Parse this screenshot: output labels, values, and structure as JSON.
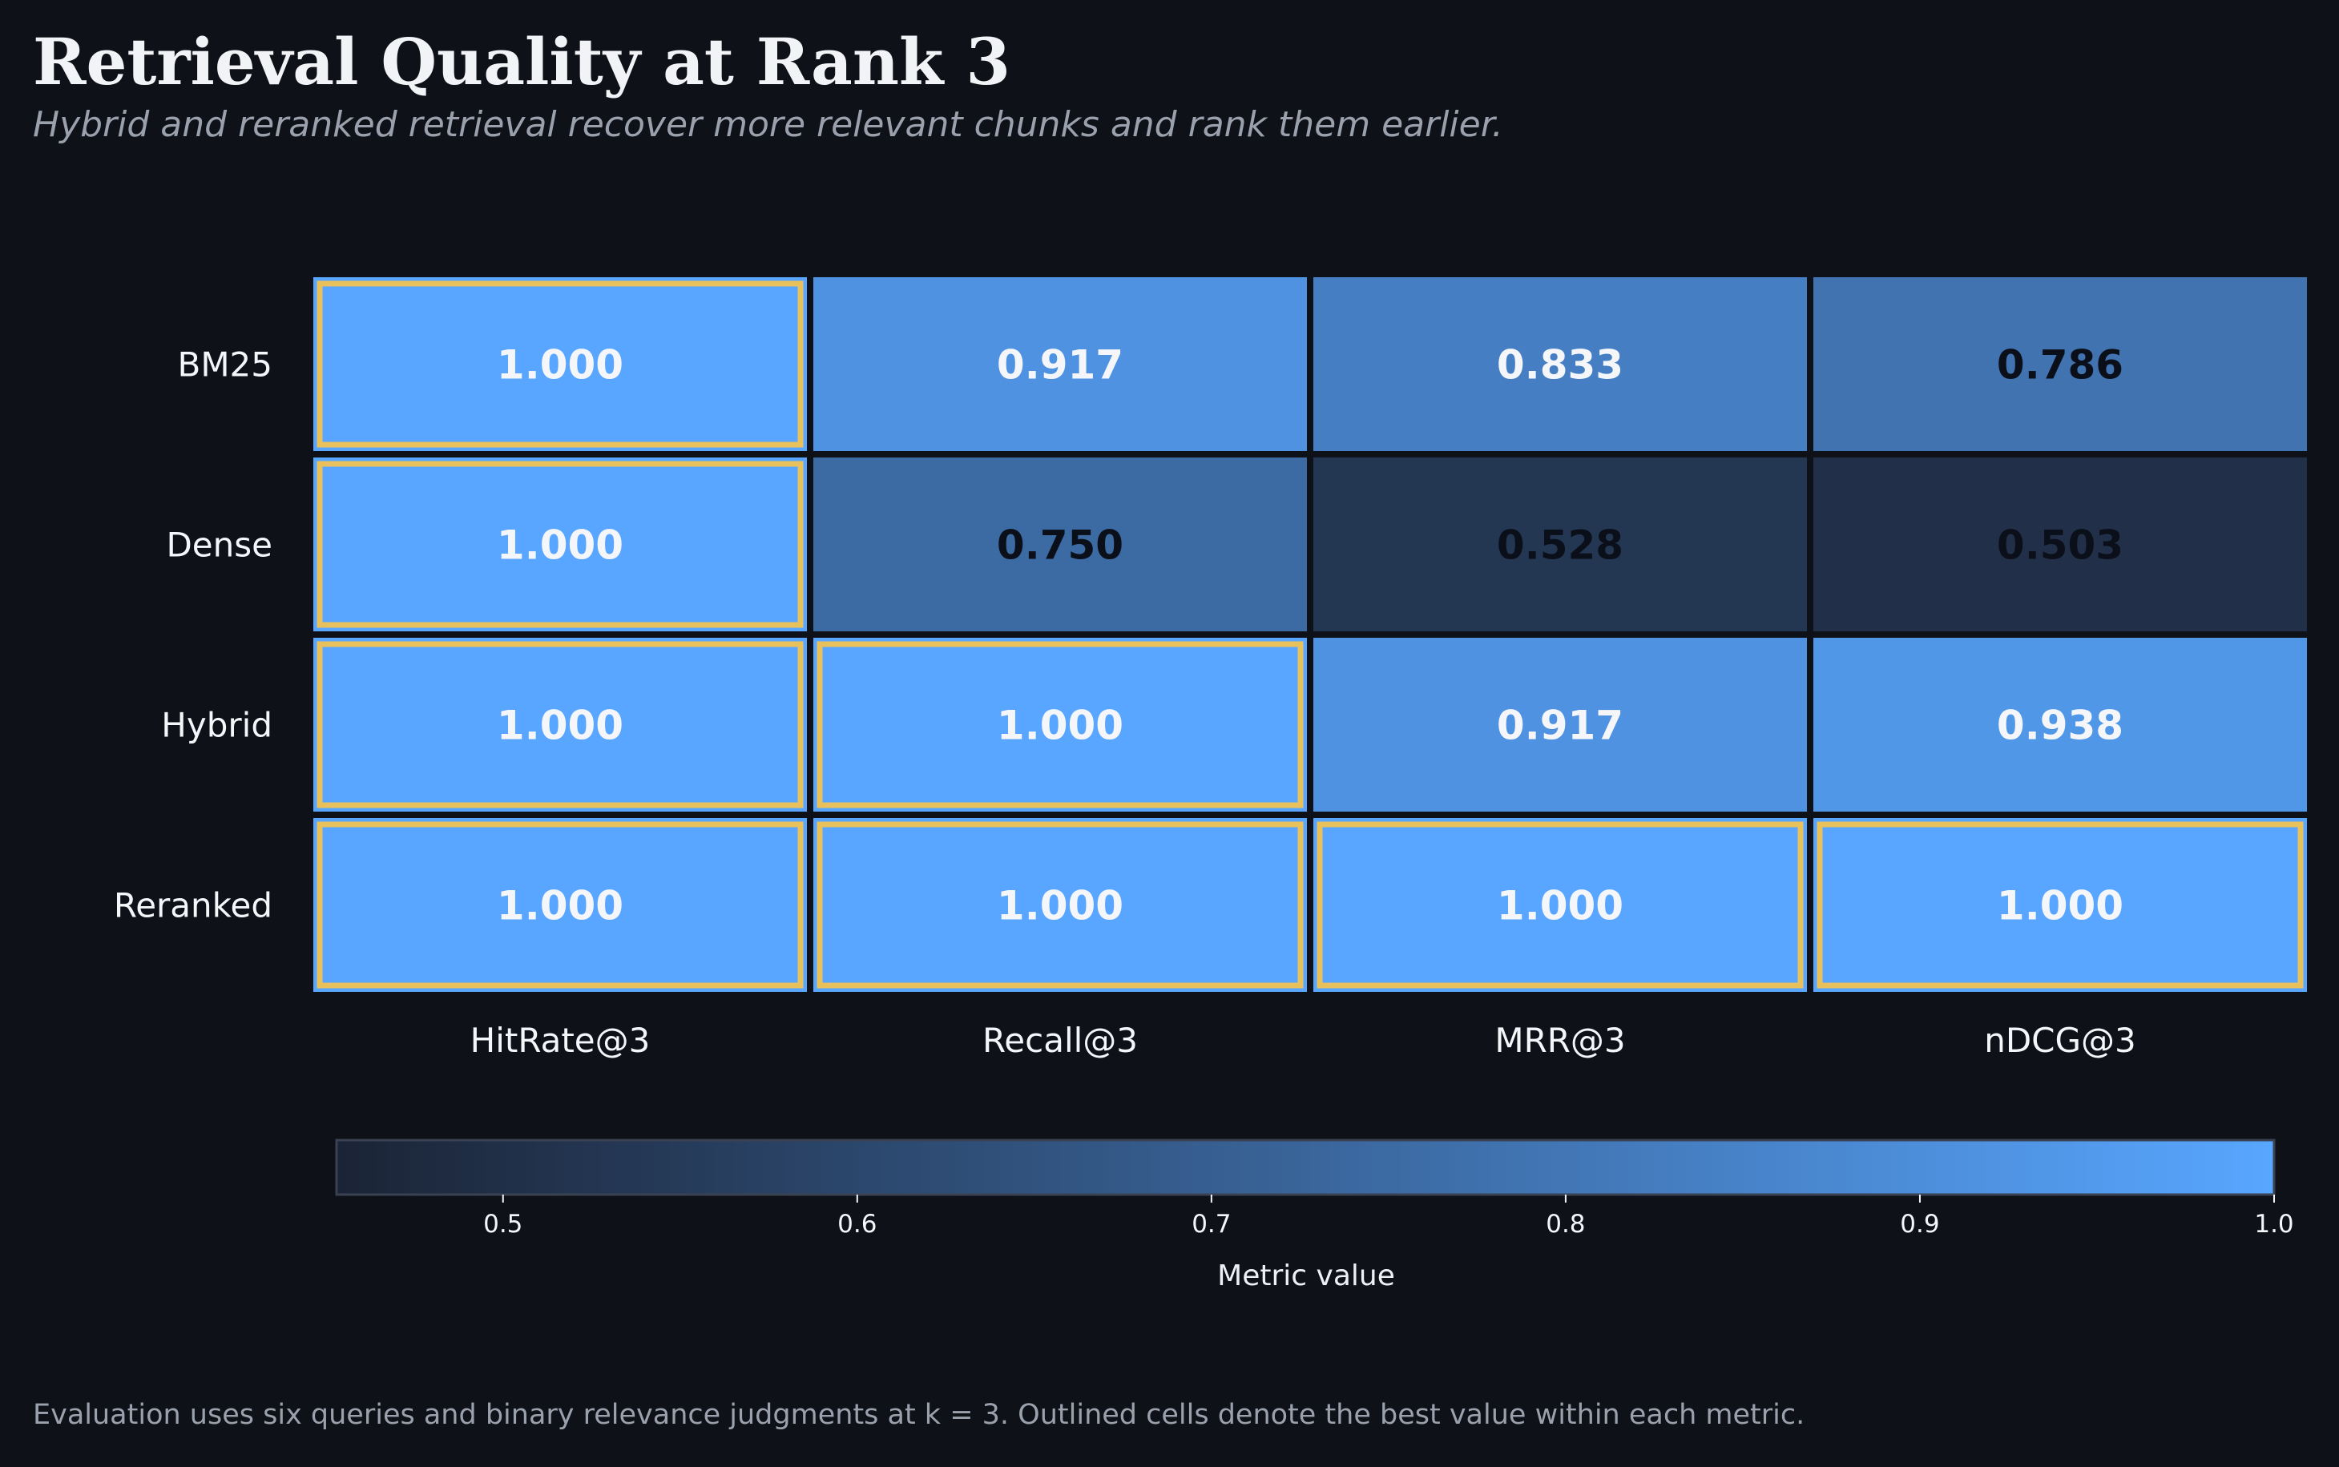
{
  "title": "Retrieval Quality at Rank 3",
  "subtitle": "Hybrid and reranked retrieval recover more relevant chunks and rank them earlier.",
  "footnote": "Evaluation uses six queries and binary relevance judgments at k = 3. Outlined cells denote the best value within each metric.",
  "chart_data": {
    "type": "heatmap",
    "rows": [
      "BM25",
      "Dense",
      "Hybrid",
      "Reranked"
    ],
    "columns": [
      "HitRate@3",
      "Recall@3",
      "MRR@3",
      "nDCG@3"
    ],
    "values": [
      [
        1.0,
        0.917,
        0.833,
        0.786
      ],
      [
        1.0,
        0.75,
        0.528,
        0.503
      ],
      [
        1.0,
        1.0,
        0.917,
        0.938
      ],
      [
        1.0,
        1.0,
        1.0,
        1.0
      ]
    ],
    "value_labels": [
      [
        "1.000",
        "0.917",
        "0.833",
        "0.786"
      ],
      [
        "1.000",
        "0.750",
        "0.528",
        "0.503"
      ],
      [
        "1.000",
        "1.000",
        "0.917",
        "0.938"
      ],
      [
        "1.000",
        "1.000",
        "1.000",
        "1.000"
      ]
    ],
    "best_outlined": [
      [
        true,
        false,
        false,
        false
      ],
      [
        true,
        false,
        false,
        false
      ],
      [
        true,
        true,
        false,
        false
      ],
      [
        true,
        true,
        true,
        true
      ]
    ],
    "colorbar": {
      "label": "Metric value",
      "range": [
        0.453,
        1.0
      ],
      "ticks": [
        0.5,
        0.6,
        0.7,
        0.8,
        0.9,
        1.0
      ],
      "tick_labels": [
        "0.5",
        "0.6",
        "0.7",
        "0.8",
        "0.9",
        "1.0"
      ],
      "orientation": "horizontal",
      "position": "bottom"
    },
    "colors": {
      "low": "#1b2436",
      "high": "#58a6ff",
      "highlight": "#e8c15c",
      "background": "#0e1118",
      "light_text": "#f4f6fa",
      "dark_text": "#0b0f19"
    }
  }
}
